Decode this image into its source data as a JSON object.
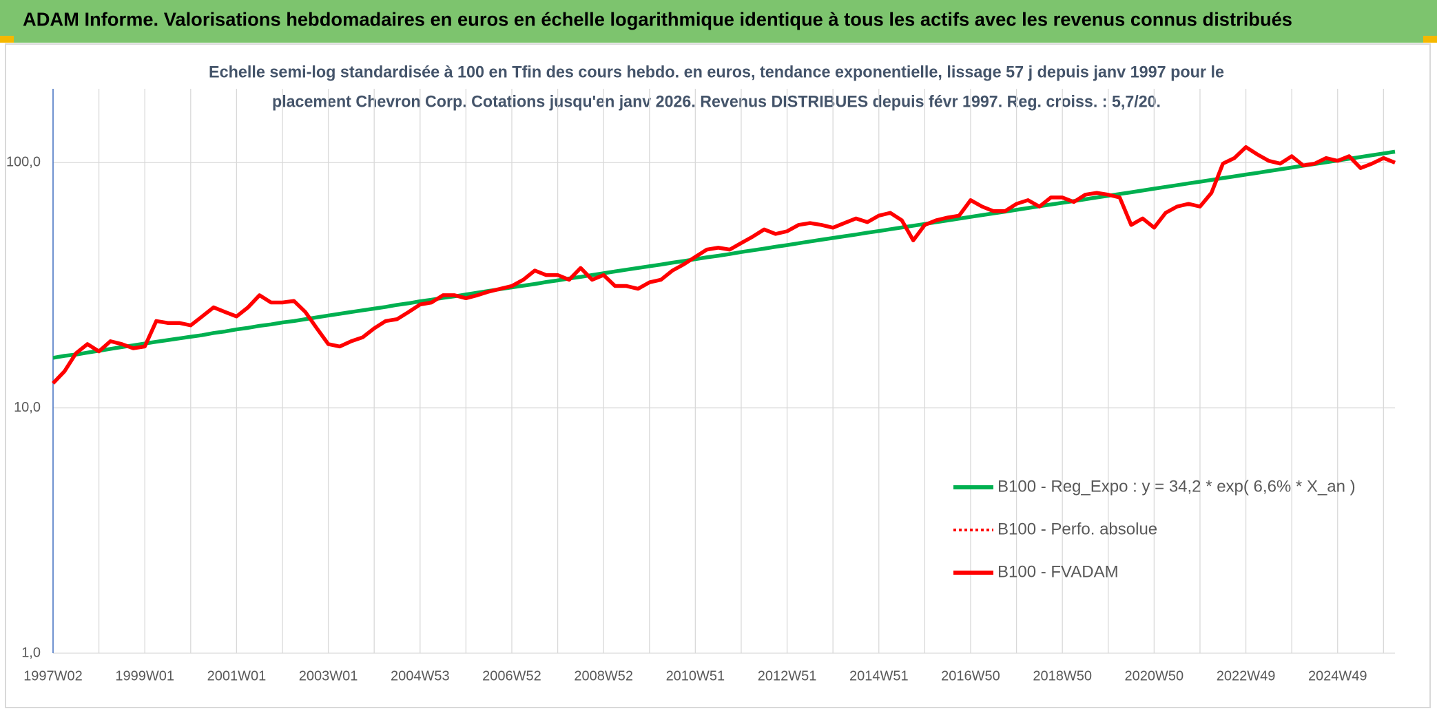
{
  "chart_data": {
    "type": "line",
    "title": "ADAM Informe. Valorisations hebdomadaires en euros en échelle logarithmique identique à tous les actifs avec les revenus connus distribués",
    "subtitle": [
      "Echelle semi-log standardisée à 100 en Tfin des cours hebdo. en euros, tendance exponentielle, lissage 57 j depuis janv 1997 pour le",
      "placement Chevron Corp. Cotations jusqu'en janv 2026. Revenus DISTRIBUES depuis févr 1997. Reg. croiss. : 5,7/20."
    ],
    "categories": [
      "1997W02",
      null,
      null,
      null,
      null,
      null,
      null,
      null,
      "1999W01",
      null,
      null,
      null,
      null,
      null,
      null,
      null,
      "2001W01",
      null,
      null,
      null,
      null,
      null,
      null,
      null,
      "2003W01",
      null,
      null,
      null,
      null,
      null,
      null,
      null,
      "2004W53",
      null,
      null,
      null,
      null,
      null,
      null,
      null,
      "2006W52",
      null,
      null,
      null,
      null,
      null,
      null,
      null,
      "2008W52",
      null,
      null,
      null,
      null,
      null,
      null,
      null,
      "2010W51",
      null,
      null,
      null,
      null,
      null,
      null,
      null,
      "2012W51",
      null,
      null,
      null,
      null,
      null,
      null,
      null,
      "2014W51",
      null,
      null,
      null,
      null,
      null,
      null,
      null,
      "2016W50",
      null,
      null,
      null,
      null,
      null,
      null,
      null,
      "2018W50",
      null,
      null,
      null,
      null,
      null,
      null,
      null,
      "2020W50",
      null,
      null,
      null,
      null,
      null,
      null,
      null,
      "2022W49",
      null,
      null,
      null,
      null,
      null,
      null,
      null,
      "2024W49",
      null,
      null,
      null,
      null,
      null
    ],
    "series": [
      {
        "name": "B100 - Reg_Expo : y = 34,2 * exp( 6,6% *  X_an )",
        "color": "#00b050",
        "style": "solid",
        "values": [
          16.0,
          16.3,
          16.5,
          16.8,
          17.1,
          17.4,
          17.7,
          18.0,
          18.3,
          18.6,
          18.9,
          19.2,
          19.5,
          19.8,
          20.2,
          20.5,
          20.9,
          21.2,
          21.6,
          21.9,
          22.3,
          22.6,
          23.0,
          23.4,
          23.8,
          24.2,
          24.6,
          25.0,
          25.4,
          25.8,
          26.3,
          26.7,
          27.2,
          27.6,
          28.1,
          28.5,
          29.0,
          29.5,
          30.0,
          30.5,
          31.0,
          31.5,
          32.0,
          32.6,
          33.1,
          33.7,
          34.2,
          34.8,
          35.4,
          36.0,
          36.6,
          37.2,
          37.8,
          38.4,
          39.1,
          39.7,
          40.4,
          41.1,
          41.7,
          42.4,
          43.2,
          43.9,
          44.6,
          45.4,
          46.1,
          46.9,
          47.7,
          48.5,
          49.3,
          50.1,
          50.9,
          51.8,
          52.6,
          53.5,
          54.4,
          55.3,
          56.2,
          57.2,
          58.1,
          59.1,
          60.1,
          61.1,
          62.1,
          63.1,
          64.2,
          65.3,
          66.4,
          67.5,
          68.6,
          69.7,
          70.9,
          72.1,
          73.3,
          74.5,
          75.7,
          77.0,
          78.3,
          79.6,
          80.9,
          82.3,
          83.6,
          85.0,
          86.5,
          87.9,
          89.4,
          90.8,
          92.4,
          93.9,
          95.5,
          97.1,
          98.7,
          100.3,
          102.0,
          103.7,
          105.4,
          107.2,
          109.0,
          110.8
        ]
      },
      {
        "name": "B100 - Perfo. absolue",
        "color": "#ff0000",
        "style": "dotted",
        "values": [
          12.6,
          14.1,
          16.7,
          18.2,
          17.0,
          18.7,
          18.2,
          17.5,
          17.8,
          22.6,
          22.2,
          22.2,
          21.7,
          23.6,
          25.7,
          24.6,
          23.6,
          25.7,
          28.8,
          26.9,
          26.9,
          27.3,
          24.6,
          21.1,
          18.2,
          17.8,
          18.7,
          19.4,
          21.1,
          22.6,
          23.0,
          24.6,
          26.4,
          26.9,
          28.8,
          28.8,
          28.0,
          28.8,
          29.8,
          30.6,
          31.4,
          33.3,
          36.3,
          34.8,
          34.8,
          33.3,
          37.2,
          33.3,
          34.8,
          31.4,
          31.4,
          30.6,
          32.5,
          33.3,
          36.3,
          38.5,
          41.3,
          44.2,
          45.0,
          44.2,
          47.0,
          49.9,
          53.4,
          51.2,
          52.5,
          55.7,
          56.7,
          55.7,
          54.3,
          56.7,
          59.2,
          57.2,
          60.8,
          62.4,
          58.2,
          48.2,
          55.7,
          58.2,
          59.7,
          60.8,
          70.3,
          66.2,
          63.4,
          63.4,
          67.9,
          70.3,
          66.2,
          72.1,
          72.1,
          69.1,
          74.0,
          75.3,
          74.0,
          72.1,
          55.7,
          59.2,
          54.3,
          62.4,
          66.2,
          67.9,
          66.2,
          75.3,
          99.1,
          104.4,
          115.7,
          108.0,
          101.7,
          99.1,
          106.2,
          97.4,
          99.1,
          104.4,
          101.7,
          106.2,
          95.0,
          99.1,
          104.4,
          100.0
        ]
      },
      {
        "name": "B100 - FVADAM",
        "color": "#ff0000",
        "style": "solid",
        "values": [
          12.6,
          14.1,
          16.7,
          18.2,
          17.0,
          18.7,
          18.2,
          17.5,
          17.8,
          22.6,
          22.2,
          22.2,
          21.7,
          23.6,
          25.7,
          24.6,
          23.6,
          25.7,
          28.8,
          26.9,
          26.9,
          27.3,
          24.6,
          21.1,
          18.2,
          17.8,
          18.7,
          19.4,
          21.1,
          22.6,
          23.0,
          24.6,
          26.4,
          26.9,
          28.8,
          28.8,
          28.0,
          28.8,
          29.8,
          30.6,
          31.4,
          33.3,
          36.3,
          34.8,
          34.8,
          33.3,
          37.2,
          33.3,
          34.8,
          31.4,
          31.4,
          30.6,
          32.5,
          33.3,
          36.3,
          38.5,
          41.3,
          44.2,
          45.0,
          44.2,
          47.0,
          49.9,
          53.4,
          51.2,
          52.5,
          55.7,
          56.7,
          55.7,
          54.3,
          56.7,
          59.2,
          57.2,
          60.8,
          62.4,
          58.2,
          48.2,
          55.7,
          58.2,
          59.7,
          60.8,
          70.3,
          66.2,
          63.4,
          63.4,
          67.9,
          70.3,
          66.2,
          72.1,
          72.1,
          69.1,
          74.0,
          75.3,
          74.0,
          72.1,
          55.7,
          59.2,
          54.3,
          62.4,
          66.2,
          67.9,
          66.2,
          75.3,
          99.1,
          104.4,
          115.7,
          108.0,
          101.7,
          99.1,
          106.2,
          97.4,
          99.1,
          104.4,
          101.7,
          106.2,
          95.0,
          99.1,
          104.4,
          100.0
        ]
      }
    ],
    "ylim": [
      1,
      200
    ],
    "ylog": true,
    "yticks": [
      {
        "value": 1,
        "label": "1,0"
      },
      {
        "value": 10,
        "label": "10,0"
      },
      {
        "value": 100,
        "label": "100,0"
      }
    ],
    "grid": true,
    "legend": "lower right"
  }
}
